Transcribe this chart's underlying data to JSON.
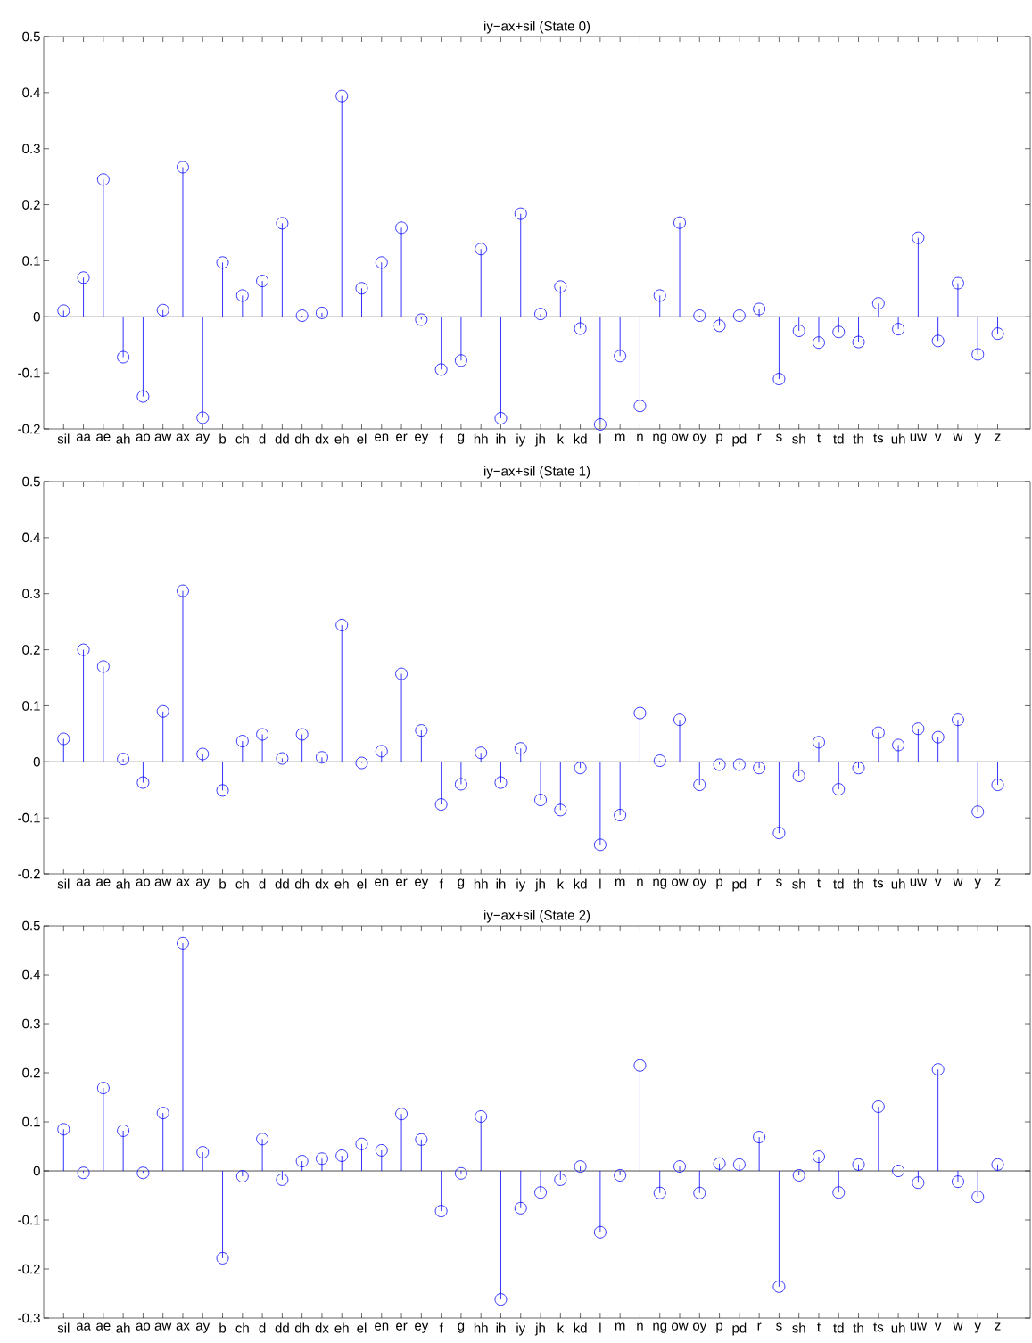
{
  "chart_data": [
    {
      "type": "lollipop",
      "title": "iy−ax+sil (State 0)",
      "categories": [
        "sil",
        "aa",
        "ae",
        "ah",
        "ao",
        "aw",
        "ax",
        "ay",
        "b",
        "ch",
        "d",
        "dd",
        "dh",
        "dx",
        "eh",
        "el",
        "en",
        "er",
        "ey",
        "f",
        "g",
        "hh",
        "ih",
        "iy",
        "jh",
        "k",
        "kd",
        "l",
        "m",
        "n",
        "ng",
        "ow",
        "oy",
        "p",
        "pd",
        "r",
        "s",
        "sh",
        "t",
        "td",
        "th",
        "ts",
        "uh",
        "uw",
        "v",
        "w",
        "y",
        "z"
      ],
      "values": [
        0.011,
        0.07,
        0.245,
        -0.072,
        -0.142,
        0.012,
        0.267,
        -0.18,
        0.097,
        0.038,
        0.064,
        0.167,
        0.002,
        0.007,
        0.394,
        0.051,
        0.097,
        0.159,
        -0.005,
        -0.094,
        -0.078,
        0.121,
        -0.181,
        0.184,
        0.005,
        0.054,
        -0.021,
        -0.192,
        -0.07,
        -0.159,
        0.038,
        0.168,
        0.002,
        -0.016,
        0.002,
        0.014,
        -0.111,
        -0.025,
        -0.046,
        -0.027,
        -0.045,
        0.024,
        -0.022,
        0.141,
        -0.043,
        0.06,
        -0.067,
        -0.03
      ],
      "color": "#0000ff",
      "marker": "circle",
      "ylim": [
        -0.2,
        0.5
      ],
      "yticks": [
        -0.2,
        -0.1,
        0,
        0.1,
        0.2,
        0.3,
        0.4,
        0.5
      ],
      "ref_lines": [
        {
          "axis": "y",
          "value": 0,
          "color": "#000000"
        }
      ]
    },
    {
      "type": "lollipop",
      "title": "iy−ax+sil (State 1)",
      "categories": [
        "sil",
        "aa",
        "ae",
        "ah",
        "ao",
        "aw",
        "ax",
        "ay",
        "b",
        "ch",
        "d",
        "dd",
        "dh",
        "dx",
        "eh",
        "el",
        "en",
        "er",
        "ey",
        "f",
        "g",
        "hh",
        "ih",
        "iy",
        "jh",
        "k",
        "kd",
        "l",
        "m",
        "n",
        "ng",
        "ow",
        "oy",
        "p",
        "pd",
        "r",
        "s",
        "sh",
        "t",
        "td",
        "th",
        "ts",
        "uh",
        "uw",
        "v",
        "w",
        "y",
        "z"
      ],
      "values": [
        0.041,
        0.2,
        0.17,
        0.005,
        -0.037,
        0.09,
        0.305,
        0.014,
        -0.051,
        0.037,
        0.049,
        0.006,
        0.049,
        0.008,
        0.244,
        -0.002,
        0.019,
        0.157,
        0.056,
        -0.076,
        -0.04,
        0.016,
        -0.037,
        0.024,
        -0.068,
        -0.086,
        -0.011,
        -0.148,
        -0.095,
        0.087,
        0.002,
        0.075,
        -0.041,
        -0.005,
        -0.005,
        -0.011,
        -0.127,
        -0.025,
        0.035,
        -0.049,
        -0.011,
        0.052,
        0.03,
        0.059,
        0.044,
        0.075,
        -0.089,
        -0.041
      ],
      "color": "#0000ff",
      "marker": "circle",
      "ylim": [
        -0.2,
        0.5
      ],
      "yticks": [
        -0.2,
        -0.1,
        0,
        0.1,
        0.2,
        0.3,
        0.4,
        0.5
      ],
      "ref_lines": [
        {
          "axis": "y",
          "value": 0,
          "color": "#000000"
        }
      ]
    },
    {
      "type": "lollipop",
      "title": "iy−ax+sil (State 2)",
      "categories": [
        "sil",
        "aa",
        "ae",
        "ah",
        "ao",
        "aw",
        "ax",
        "ay",
        "b",
        "ch",
        "d",
        "dd",
        "dh",
        "dx",
        "eh",
        "el",
        "en",
        "er",
        "ey",
        "f",
        "g",
        "hh",
        "ih",
        "iy",
        "jh",
        "k",
        "kd",
        "l",
        "m",
        "n",
        "ng",
        "ow",
        "oy",
        "p",
        "pd",
        "r",
        "s",
        "sh",
        "t",
        "td",
        "th",
        "ts",
        "uh",
        "uw",
        "v",
        "w",
        "y",
        "z"
      ],
      "values": [
        0.085,
        -0.004,
        0.169,
        0.082,
        -0.004,
        0.118,
        0.464,
        0.038,
        -0.178,
        -0.011,
        0.065,
        -0.018,
        0.02,
        0.025,
        0.031,
        0.055,
        0.042,
        0.116,
        0.064,
        -0.082,
        -0.005,
        0.111,
        -0.262,
        -0.076,
        -0.044,
        -0.018,
        0.009,
        -0.125,
        -0.009,
        0.215,
        -0.045,
        0.009,
        -0.045,
        0.015,
        0.013,
        0.069,
        -0.236,
        -0.009,
        0.029,
        -0.044,
        0.013,
        0.131,
        0.0,
        -0.024,
        0.207,
        -0.022,
        -0.053,
        0.013
      ],
      "color": "#0000ff",
      "marker": "circle",
      "ylim": [
        -0.3,
        0.5
      ],
      "yticks": [
        -0.3,
        -0.2,
        -0.1,
        0,
        0.1,
        0.2,
        0.3,
        0.4,
        0.5
      ],
      "ref_lines": [
        {
          "axis": "y",
          "value": 0,
          "color": "#000000"
        }
      ]
    }
  ]
}
